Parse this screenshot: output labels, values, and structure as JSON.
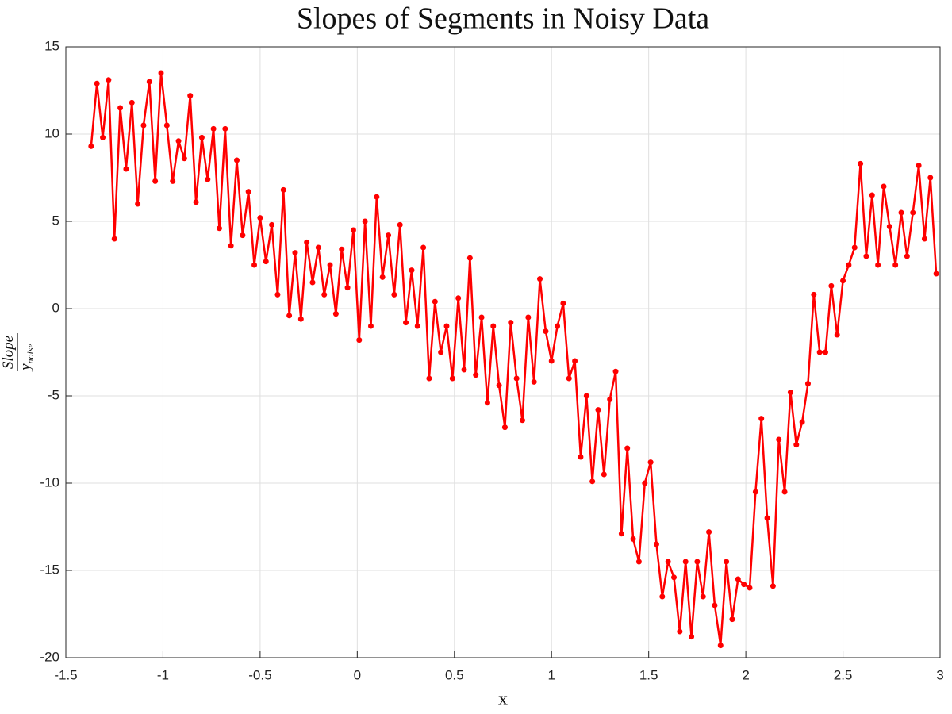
{
  "chart_data": {
    "type": "scatter",
    "title": "Slopes of Segments in Noisy Data",
    "xlabel": "x",
    "ylabel_numerator": "Slope",
    "ylabel_denominator": "y",
    "ylabel_subscript": "noise",
    "grid": true,
    "color": "#ff0000",
    "xlim": [
      -1.5,
      3
    ],
    "xticks": [
      -1.5,
      -1,
      -0.5,
      0,
      0.5,
      1,
      1.5,
      2,
      2.5,
      3
    ],
    "ylim": [
      -20,
      15
    ],
    "yticks": [
      -20,
      -15,
      -10,
      -5,
      0,
      5,
      10,
      15
    ],
    "x": [
      -1.37,
      -1.34,
      -1.31,
      -1.28,
      -1.25,
      -1.22,
      -1.19,
      -1.16,
      -1.13,
      -1.1,
      -1.07,
      -1.04,
      -1.01,
      -0.98,
      -0.95,
      -0.92,
      -0.89,
      -0.86,
      -0.83,
      -0.8,
      -0.77,
      -0.74,
      -0.71,
      -0.68,
      -0.65,
      -0.62,
      -0.59,
      -0.56,
      -0.53,
      -0.5,
      -0.47,
      -0.44,
      -0.41,
      -0.38,
      -0.35,
      -0.32,
      -0.29,
      -0.26,
      -0.23,
      -0.2,
      -0.17,
      -0.14,
      -0.11,
      -0.08,
      -0.05,
      -0.02,
      0.01,
      0.04,
      0.07,
      0.1,
      0.13,
      0.16,
      0.19,
      0.22,
      0.25,
      0.28,
      0.31,
      0.34,
      0.37,
      0.4,
      0.43,
      0.46,
      0.49,
      0.52,
      0.55,
      0.58,
      0.61,
      0.64,
      0.67,
      0.7,
      0.73,
      0.76,
      0.79,
      0.82,
      0.85,
      0.88,
      0.91,
      0.94,
      0.97,
      1.0,
      1.03,
      1.06,
      1.09,
      1.12,
      1.15,
      1.18,
      1.21,
      1.24,
      1.27,
      1.3,
      1.33,
      1.36,
      1.39,
      1.42,
      1.45,
      1.48,
      1.51,
      1.54,
      1.57,
      1.6,
      1.63,
      1.66,
      1.69,
      1.72,
      1.75,
      1.78,
      1.81,
      1.84,
      1.87,
      1.9,
      1.93,
      1.96,
      1.99,
      2.02,
      2.05,
      2.08,
      2.11,
      2.14,
      2.17,
      2.2,
      2.23,
      2.26,
      2.29,
      2.32,
      2.35,
      2.38,
      2.41,
      2.44,
      2.47,
      2.5,
      2.53,
      2.56,
      2.59,
      2.62,
      2.65,
      2.68,
      2.71,
      2.74,
      2.77,
      2.8,
      2.83,
      2.86,
      2.89,
      2.92,
      2.95,
      2.98
    ],
    "values": [
      9.3,
      12.9,
      9.8,
      13.1,
      4.0,
      11.5,
      8.0,
      11.8,
      6.0,
      10.5,
      13.0,
      7.3,
      13.5,
      10.5,
      7.3,
      9.6,
      8.6,
      12.2,
      6.1,
      9.8,
      7.4,
      10.3,
      4.6,
      10.3,
      3.6,
      8.5,
      4.2,
      6.7,
      2.5,
      5.2,
      2.7,
      4.8,
      0.8,
      6.8,
      -0.4,
      3.2,
      -0.6,
      3.8,
      1.5,
      3.5,
      0.8,
      2.5,
      -0.3,
      3.4,
      1.2,
      4.5,
      -1.8,
      5.0,
      -1.0,
      6.4,
      1.8,
      4.2,
      0.8,
      4.8,
      -0.8,
      2.2,
      -1.0,
      3.5,
      -4.0,
      0.4,
      -2.5,
      -1.0,
      -4.0,
      0.6,
      -3.5,
      2.9,
      -3.8,
      -0.5,
      -5.4,
      -1.0,
      -4.4,
      -6.8,
      -0.8,
      -4.0,
      -6.4,
      -0.5,
      -4.2,
      1.7,
      -1.3,
      -3.0,
      -1.0,
      0.3,
      -4.0,
      -3.0,
      -8.5,
      -5.0,
      -9.9,
      -5.8,
      -9.5,
      -5.2,
      -3.6,
      -12.9,
      -8.0,
      -13.2,
      -14.5,
      -10.0,
      -8.8,
      -13.5,
      -16.5,
      -14.5,
      -15.4,
      -18.5,
      -14.5,
      -18.8,
      -14.5,
      -16.5,
      -12.8,
      -17.0,
      -19.3,
      -14.5,
      -17.8,
      -15.5,
      -15.8,
      -16.0,
      -10.5,
      -6.3,
      -12.0,
      -15.9,
      -7.5,
      -10.5,
      -4.8,
      -7.8,
      -6.5,
      -4.3,
      0.8,
      -2.5,
      -2.5,
      1.3,
      -1.5,
      1.6,
      2.5,
      3.5,
      8.3,
      3.0,
      6.5,
      2.5,
      7.0,
      4.7,
      2.5,
      5.5,
      3.0,
      5.5,
      8.2,
      4.0,
      7.5,
      2.0
    ]
  }
}
